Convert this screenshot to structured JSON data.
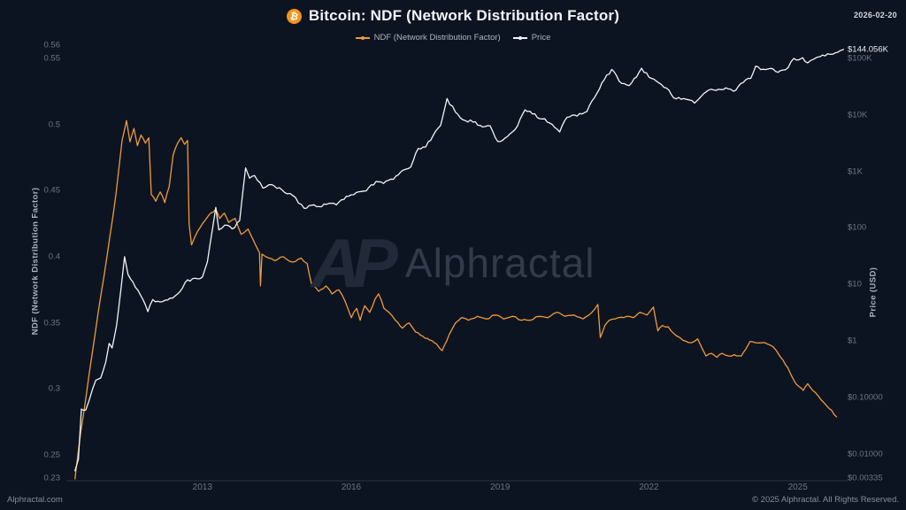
{
  "header": {
    "title": "Bitcoin: NDF (Network Distribution Factor)",
    "icon_glyph": "₿",
    "date": "2026-02-20"
  },
  "legend": {
    "items": [
      {
        "label": "NDF (Network Distribution Factor)",
        "color": "#ef9a3d"
      },
      {
        "label": "Price",
        "color": "#f2f4f7"
      }
    ]
  },
  "watermark": {
    "logo": "AP",
    "text": "Alphractal"
  },
  "footer": {
    "site": "Alphractal.com",
    "copyright": "© 2025 Alphractal. All Rights Reserved."
  },
  "chart_data": {
    "type": "line",
    "title": "Bitcoin: NDF (Network Distribution Factor)",
    "grid": false,
    "legend_position": "top-center",
    "x_axis": {
      "range_years": [
        2010.4,
        2025.95
      ],
      "ticks": [
        {
          "label": "2013",
          "year": 2013
        },
        {
          "label": "2016",
          "year": 2016
        },
        {
          "label": "2019",
          "year": 2019
        },
        {
          "label": "2022",
          "year": 2022
        },
        {
          "label": "2025",
          "year": 2025
        }
      ]
    },
    "y_left": {
      "label": "NDF (Network Distribution Factor)",
      "scale": "linear",
      "range": [
        0.23,
        0.56
      ],
      "ticks": [
        {
          "label": "0.56",
          "value": 0.56
        },
        {
          "label": "0.55",
          "value": 0.55
        },
        {
          "label": "0.5",
          "value": 0.5
        },
        {
          "label": "0.45",
          "value": 0.45
        },
        {
          "label": "0.4",
          "value": 0.4
        },
        {
          "label": "0.35",
          "value": 0.35
        },
        {
          "label": "0.3",
          "value": 0.3
        },
        {
          "label": "0.25",
          "value": 0.25
        },
        {
          "label": "0.23",
          "value": 0.23
        }
      ]
    },
    "y_right": {
      "label": "Price (USD)",
      "scale": "log",
      "range": [
        0.00335,
        144056
      ],
      "ticks": [
        {
          "label": "$144.056K",
          "value": 144056,
          "highlight": true
        },
        {
          "label": "$100K",
          "value": 100000
        },
        {
          "label": "$10K",
          "value": 10000
        },
        {
          "label": "$1K",
          "value": 1000
        },
        {
          "label": "$100",
          "value": 100
        },
        {
          "label": "$10",
          "value": 10
        },
        {
          "label": "$1",
          "value": 1
        },
        {
          "label": "$0.10000",
          "value": 0.1
        },
        {
          "label": "$0.01000",
          "value": 0.01
        },
        {
          "label": "$0.00335",
          "value": 0.00335
        }
      ]
    },
    "series": [
      {
        "name": "NDF (Network Distribution Factor)",
        "color": "#ef9a3d",
        "axis": "left",
        "points": [
          [
            2010.43,
            0.232
          ],
          [
            2010.55,
            0.268
          ],
          [
            2010.72,
            0.312
          ],
          [
            2010.9,
            0.358
          ],
          [
            2011.08,
            0.401
          ],
          [
            2011.26,
            0.448
          ],
          [
            2011.38,
            0.488
          ],
          [
            2011.47,
            0.503
          ],
          [
            2011.54,
            0.487
          ],
          [
            2011.62,
            0.497
          ],
          [
            2011.69,
            0.484
          ],
          [
            2011.76,
            0.492
          ],
          [
            2011.85,
            0.486
          ],
          [
            2011.92,
            0.49
          ],
          [
            2011.97,
            0.447
          ],
          [
            2012.06,
            0.442
          ],
          [
            2012.15,
            0.449
          ],
          [
            2012.24,
            0.441
          ],
          [
            2012.33,
            0.453
          ],
          [
            2012.41,
            0.477
          ],
          [
            2012.5,
            0.486
          ],
          [
            2012.57,
            0.49
          ],
          [
            2012.64,
            0.485
          ],
          [
            2012.7,
            0.488
          ],
          [
            2012.73,
            0.425
          ],
          [
            2012.78,
            0.409
          ],
          [
            2012.86,
            0.416
          ],
          [
            2013.0,
            0.425
          ],
          [
            2013.12,
            0.431
          ],
          [
            2013.27,
            0.436
          ],
          [
            2013.35,
            0.429
          ],
          [
            2013.44,
            0.433
          ],
          [
            2013.53,
            0.426
          ],
          [
            2013.66,
            0.429
          ],
          [
            2013.78,
            0.417
          ],
          [
            2013.92,
            0.421
          ],
          [
            2014.07,
            0.409
          ],
          [
            2014.15,
            0.403
          ],
          [
            2014.17,
            0.378
          ],
          [
            2014.2,
            0.402
          ],
          [
            2014.28,
            0.4
          ],
          [
            2014.46,
            0.397
          ],
          [
            2014.63,
            0.4
          ],
          [
            2014.81,
            0.396
          ],
          [
            2014.99,
            0.399
          ],
          [
            2015.11,
            0.395
          ],
          [
            2015.2,
            0.379
          ],
          [
            2015.34,
            0.374
          ],
          [
            2015.49,
            0.378
          ],
          [
            2015.61,
            0.372
          ],
          [
            2015.75,
            0.375
          ],
          [
            2015.88,
            0.366
          ],
          [
            2016.0,
            0.354
          ],
          [
            2016.11,
            0.361
          ],
          [
            2016.18,
            0.352
          ],
          [
            2016.27,
            0.363
          ],
          [
            2016.37,
            0.358
          ],
          [
            2016.48,
            0.368
          ],
          [
            2016.55,
            0.372
          ],
          [
            2016.66,
            0.361
          ],
          [
            2016.76,
            0.358
          ],
          [
            2016.89,
            0.352
          ],
          [
            2017.03,
            0.346
          ],
          [
            2017.17,
            0.35
          ],
          [
            2017.3,
            0.343
          ],
          [
            2017.44,
            0.34
          ],
          [
            2017.58,
            0.337
          ],
          [
            2017.72,
            0.334
          ],
          [
            2017.83,
            0.329
          ],
          [
            2017.97,
            0.341
          ],
          [
            2018.1,
            0.35
          ],
          [
            2018.22,
            0.354
          ],
          [
            2018.36,
            0.352
          ],
          [
            2018.54,
            0.355
          ],
          [
            2018.72,
            0.353
          ],
          [
            2018.9,
            0.356
          ],
          [
            2019.07,
            0.353
          ],
          [
            2019.25,
            0.355
          ],
          [
            2019.43,
            0.352
          ],
          [
            2019.6,
            0.352
          ],
          [
            2019.78,
            0.355
          ],
          [
            2019.96,
            0.354
          ],
          [
            2020.14,
            0.358
          ],
          [
            2020.31,
            0.355
          ],
          [
            2020.49,
            0.356
          ],
          [
            2020.67,
            0.353
          ],
          [
            2020.85,
            0.358
          ],
          [
            2020.97,
            0.364
          ],
          [
            2021.02,
            0.339
          ],
          [
            2021.11,
            0.348
          ],
          [
            2021.2,
            0.352
          ],
          [
            2021.38,
            0.354
          ],
          [
            2021.55,
            0.355
          ],
          [
            2021.68,
            0.354
          ],
          [
            2021.82,
            0.358
          ],
          [
            2021.96,
            0.356
          ],
          [
            2022.09,
            0.362
          ],
          [
            2022.18,
            0.344
          ],
          [
            2022.27,
            0.348
          ],
          [
            2022.39,
            0.347
          ],
          [
            2022.5,
            0.342
          ],
          [
            2022.62,
            0.339
          ],
          [
            2022.75,
            0.336
          ],
          [
            2022.85,
            0.335
          ],
          [
            2022.98,
            0.338
          ],
          [
            2023.08,
            0.33
          ],
          [
            2023.15,
            0.325
          ],
          [
            2023.26,
            0.327
          ],
          [
            2023.37,
            0.324
          ],
          [
            2023.47,
            0.327
          ],
          [
            2023.6,
            0.325
          ],
          [
            2023.72,
            0.326
          ],
          [
            2023.86,
            0.325
          ],
          [
            2023.95,
            0.33
          ],
          [
            2024.04,
            0.336
          ],
          [
            2024.15,
            0.335
          ],
          [
            2024.27,
            0.335
          ],
          [
            2024.39,
            0.334
          ],
          [
            2024.5,
            0.332
          ],
          [
            2024.57,
            0.329
          ],
          [
            2024.7,
            0.322
          ],
          [
            2024.8,
            0.316
          ],
          [
            2024.93,
            0.306
          ],
          [
            2025.02,
            0.302
          ],
          [
            2025.11,
            0.299
          ],
          [
            2025.2,
            0.304
          ],
          [
            2025.3,
            0.299
          ],
          [
            2025.41,
            0.295
          ],
          [
            2025.52,
            0.29
          ],
          [
            2025.59,
            0.287
          ],
          [
            2025.68,
            0.284
          ],
          [
            2025.78,
            0.279
          ]
        ]
      },
      {
        "name": "Price",
        "color": "#f2f4f7",
        "axis": "right",
        "points": [
          [
            2010.43,
            0.005
          ],
          [
            2010.5,
            0.008
          ],
          [
            2010.56,
            0.062
          ],
          [
            2010.65,
            0.06
          ],
          [
            2010.72,
            0.09
          ],
          [
            2010.85,
            0.2
          ],
          [
            2010.95,
            0.22
          ],
          [
            2011.05,
            0.42
          ],
          [
            2011.12,
            0.9
          ],
          [
            2011.18,
            0.75
          ],
          [
            2011.27,
            1.9
          ],
          [
            2011.36,
            8.5
          ],
          [
            2011.43,
            31
          ],
          [
            2011.5,
            15
          ],
          [
            2011.6,
            11
          ],
          [
            2011.75,
            6.5
          ],
          [
            2011.9,
            3.3
          ],
          [
            2012.0,
            5.4
          ],
          [
            2012.15,
            4.9
          ],
          [
            2012.3,
            5.3
          ],
          [
            2012.5,
            6.8
          ],
          [
            2012.65,
            10.8
          ],
          [
            2012.8,
            12.6
          ],
          [
            2013.0,
            13.5
          ],
          [
            2013.1,
            25
          ],
          [
            2013.27,
            230
          ],
          [
            2013.33,
            92
          ],
          [
            2013.45,
            112
          ],
          [
            2013.6,
            96
          ],
          [
            2013.75,
            135
          ],
          [
            2013.87,
            1150
          ],
          [
            2013.95,
            760
          ],
          [
            2014.05,
            845
          ],
          [
            2014.22,
            505
          ],
          [
            2014.4,
            585
          ],
          [
            2014.6,
            475
          ],
          [
            2014.82,
            375
          ],
          [
            2015.05,
            222
          ],
          [
            2015.2,
            252
          ],
          [
            2015.35,
            238
          ],
          [
            2015.55,
            272
          ],
          [
            2015.7,
            256
          ],
          [
            2015.9,
            362
          ],
          [
            2016.1,
            422
          ],
          [
            2016.3,
            452
          ],
          [
            2016.5,
            665
          ],
          [
            2016.65,
            612
          ],
          [
            2016.85,
            725
          ],
          [
            2017.0,
            985
          ],
          [
            2017.2,
            1200
          ],
          [
            2017.35,
            2550
          ],
          [
            2017.5,
            2700
          ],
          [
            2017.65,
            4350
          ],
          [
            2017.8,
            6500
          ],
          [
            2017.93,
            19500
          ],
          [
            2018.1,
            11200
          ],
          [
            2018.25,
            8200
          ],
          [
            2018.45,
            7500
          ],
          [
            2018.6,
            6500
          ],
          [
            2018.8,
            6400
          ],
          [
            2018.95,
            3400
          ],
          [
            2019.1,
            3900
          ],
          [
            2019.3,
            5500
          ],
          [
            2019.5,
            12300
          ],
          [
            2019.65,
            10400
          ],
          [
            2019.85,
            8500
          ],
          [
            2020.0,
            7200
          ],
          [
            2020.2,
            5000
          ],
          [
            2020.35,
            9100
          ],
          [
            2020.55,
            9500
          ],
          [
            2020.75,
            11500
          ],
          [
            2020.95,
            24000
          ],
          [
            2021.1,
            42000
          ],
          [
            2021.25,
            64000
          ],
          [
            2021.45,
            36000
          ],
          [
            2021.6,
            33000
          ],
          [
            2021.75,
            47000
          ],
          [
            2021.85,
            67000
          ],
          [
            2022.0,
            46500
          ],
          [
            2022.15,
            39500
          ],
          [
            2022.35,
            30000
          ],
          [
            2022.5,
            20000
          ],
          [
            2022.7,
            19500
          ],
          [
            2022.92,
            16200
          ],
          [
            2023.05,
            21200
          ],
          [
            2023.2,
            27500
          ],
          [
            2023.4,
            28400
          ],
          [
            2023.55,
            30200
          ],
          [
            2023.7,
            26300
          ],
          [
            2023.9,
            37500
          ],
          [
            2024.05,
            44200
          ],
          [
            2024.15,
            73000
          ],
          [
            2024.3,
            64500
          ],
          [
            2024.45,
            66500
          ],
          [
            2024.6,
            56800
          ],
          [
            2024.75,
            63000
          ],
          [
            2024.92,
            99500
          ],
          [
            2025.02,
            94500
          ],
          [
            2025.1,
            103000
          ],
          [
            2025.2,
            83500
          ],
          [
            2025.32,
            97000
          ],
          [
            2025.45,
            108000
          ],
          [
            2025.55,
            111000
          ],
          [
            2025.65,
            118000
          ],
          [
            2025.76,
            126000
          ],
          [
            2025.85,
            137000
          ],
          [
            2025.92,
            144056
          ]
        ]
      }
    ]
  }
}
